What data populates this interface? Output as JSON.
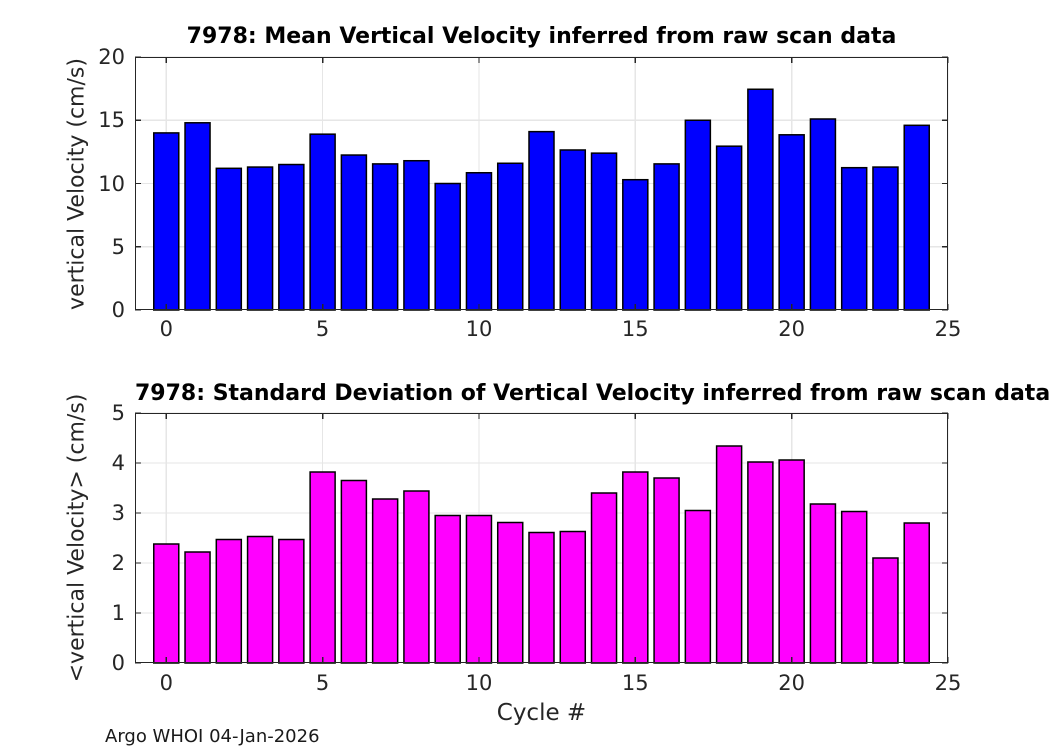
{
  "footer": "Argo WHOI 04-Jan-2026",
  "colors": {
    "bar_mean": "#0000FF",
    "bar_std": "#FF00FF",
    "bar_edge": "#000000",
    "axis": "#262626",
    "grid": "#E6E6E6",
    "title_text": "#000000",
    "background": "#FFFFFF"
  },
  "chart_data": [
    {
      "type": "bar",
      "title": "7978: Mean Vertical Velocity inferred from raw scan data",
      "ylabel": "vertical Velocity (cm/s)",
      "xlabel": "",
      "bar_color": "#0000FF",
      "bar_width": 0.8,
      "grid": true,
      "x": [
        0,
        1,
        2,
        3,
        4,
        5,
        6,
        7,
        8,
        9,
        10,
        11,
        12,
        13,
        14,
        15,
        16,
        17,
        18,
        19,
        20,
        21,
        22,
        23,
        24
      ],
      "values": [
        14.0,
        14.8,
        11.2,
        11.3,
        11.5,
        13.9,
        12.25,
        11.55,
        11.8,
        10.0,
        10.85,
        11.6,
        14.1,
        12.65,
        12.4,
        10.3,
        11.55,
        15.0,
        12.95,
        17.45,
        13.85,
        15.1,
        11.25,
        11.3,
        14.6
      ],
      "xlim": [
        -1,
        25
      ],
      "ylim": [
        0,
        20
      ],
      "xticks": [
        0,
        5,
        10,
        15,
        20,
        25
      ],
      "yticks": [
        0,
        5,
        10,
        15,
        20
      ]
    },
    {
      "type": "bar",
      "title": "7978: Standard Deviation of Vertical Velocity inferred from raw scan data",
      "ylabel": "<vertical Velocity> (cm/s)",
      "xlabel": "Cycle #",
      "bar_color": "#FF00FF",
      "bar_width": 0.8,
      "grid": true,
      "x": [
        0,
        1,
        2,
        3,
        4,
        5,
        6,
        7,
        8,
        9,
        10,
        11,
        12,
        13,
        14,
        15,
        16,
        17,
        18,
        19,
        20,
        21,
        22,
        23,
        24
      ],
      "values": [
        2.38,
        2.22,
        2.47,
        2.53,
        2.47,
        3.82,
        3.65,
        3.28,
        3.44,
        2.95,
        2.95,
        2.81,
        2.61,
        2.63,
        3.4,
        3.82,
        3.7,
        3.05,
        4.34,
        4.02,
        4.06,
        3.18,
        3.03,
        2.1,
        2.8
      ],
      "xlim": [
        -1,
        25
      ],
      "ylim": [
        0,
        5
      ],
      "xticks": [
        0,
        5,
        10,
        15,
        20,
        25
      ],
      "yticks": [
        0,
        1,
        2,
        3,
        4,
        5
      ]
    }
  ]
}
